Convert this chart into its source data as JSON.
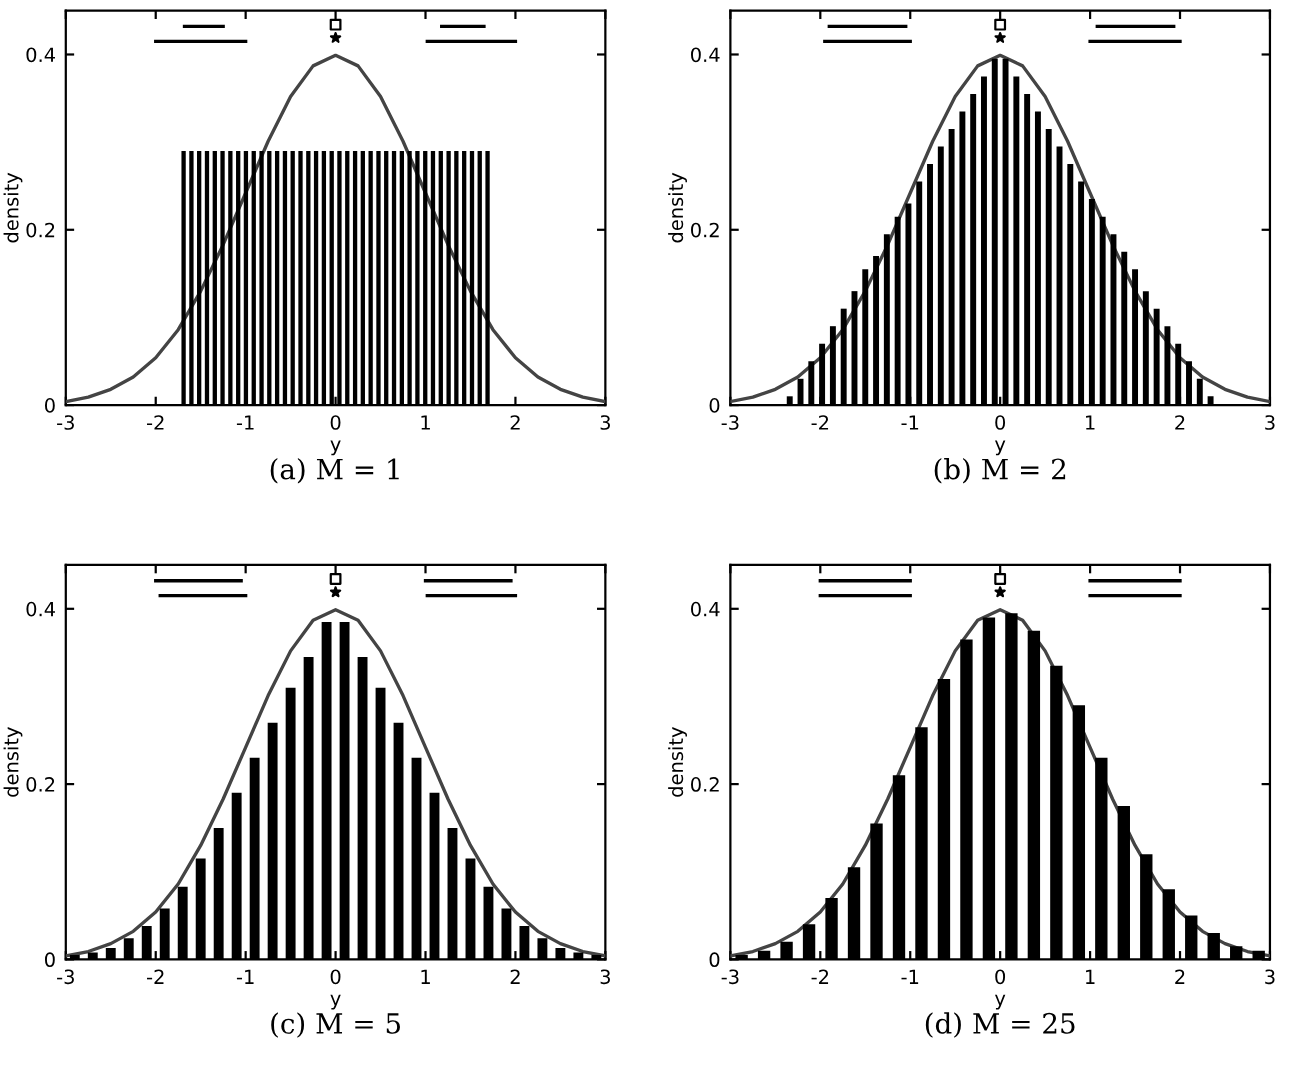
{
  "chart_data": [
    {
      "type": "bar",
      "title": "(a) M = 1",
      "xlabel": "y",
      "ylabel": "density",
      "xlim": [
        -3,
        3
      ],
      "ylim": [
        0,
        0.45
      ],
      "xticks": [
        -3,
        -2,
        -1,
        0,
        1,
        2,
        3
      ],
      "yticks": [
        0,
        0.2,
        0.4
      ],
      "series": [
        {
          "color": "#000000",
          "x": [
            -1.69,
            -1.603,
            -1.517,
            -1.43,
            -1.343,
            -1.257,
            -1.17,
            -1.083,
            -0.997,
            -0.91,
            -0.823,
            -0.737,
            -0.65,
            -0.563,
            -0.477,
            -0.39,
            -0.303,
            -0.217,
            -0.13,
            -0.043,
            0.043,
            0.13,
            0.217,
            0.303,
            0.39,
            0.477,
            0.563,
            0.65,
            0.737,
            0.823,
            0.91,
            0.997,
            1.083,
            1.17,
            1.257,
            1.343,
            1.43,
            1.517,
            1.603,
            1.69
          ],
          "values": [
            0.29,
            0.29,
            0.29,
            0.29,
            0.29,
            0.29,
            0.29,
            0.29,
            0.29,
            0.29,
            0.29,
            0.29,
            0.29,
            0.29,
            0.29,
            0.29,
            0.29,
            0.29,
            0.29,
            0.29,
            0.29,
            0.29,
            0.29,
            0.29,
            0.29,
            0.29,
            0.29,
            0.29,
            0.29,
            0.29,
            0.29,
            0.29,
            0.29,
            0.29,
            0.29,
            0.29,
            0.29,
            0.29,
            0.29,
            0.29
          ]
        },
        {
          "type": "line",
          "color": "#444444",
          "x": [
            -3,
            -2.75,
            -2.5,
            -2.25,
            -2,
            -1.75,
            -1.5,
            -1.25,
            -1,
            -0.75,
            -0.5,
            -0.25,
            0,
            0.25,
            0.5,
            0.75,
            1,
            1.25,
            1.5,
            1.75,
            2,
            2.25,
            2.5,
            2.75,
            3
          ],
          "values": [
            0.004,
            0.009,
            0.018,
            0.032,
            0.054,
            0.086,
            0.13,
            0.183,
            0.242,
            0.301,
            0.352,
            0.387,
            0.399,
            0.387,
            0.352,
            0.301,
            0.242,
            0.183,
            0.13,
            0.086,
            0.054,
            0.032,
            0.018,
            0.009,
            0.004
          ]
        },
        {
          "type": "line",
          "color": "#000000",
          "x": [
            -1.68,
            -1.25
          ],
          "values": [
            0.432,
            0.432
          ]
        },
        {
          "type": "line",
          "color": "#000000",
          "x": [
            -2.0,
            -1.0
          ],
          "values": [
            0.415,
            0.415
          ]
        },
        {
          "type": "line",
          "color": "#000000",
          "x": [
            1.18,
            1.65
          ],
          "values": [
            0.432,
            0.432
          ]
        },
        {
          "type": "line",
          "color": "#000000",
          "x": [
            1.02,
            2.0
          ],
          "values": [
            0.415,
            0.415
          ]
        },
        {
          "type": "scatter",
          "marker": "square",
          "color": "#000000",
          "x": [
            0
          ],
          "values": [
            0.434
          ]
        },
        {
          "type": "scatter",
          "marker": "star",
          "color": "#000000",
          "x": [
            0
          ],
          "values": [
            0.419
          ]
        }
      ]
    },
    {
      "type": "bar",
      "title": "(b) M = 2",
      "xlabel": "y",
      "ylabel": "density",
      "xlim": [
        -3,
        3
      ],
      "ylim": [
        0,
        0.45
      ],
      "xticks": [
        -3,
        -2,
        -1,
        0,
        1,
        2,
        3
      ],
      "yticks": [
        0,
        0.2,
        0.4
      ],
      "series": [
        {
          "color": "#000000",
          "x": [
            -2.34,
            -2.22,
            -2.1,
            -1.98,
            -1.86,
            -1.74,
            -1.62,
            -1.5,
            -1.38,
            -1.26,
            -1.14,
            -1.02,
            -0.9,
            -0.78,
            -0.66,
            -0.54,
            -0.42,
            -0.3,
            -0.18,
            -0.06,
            0.06,
            0.18,
            0.3,
            0.42,
            0.54,
            0.66,
            0.78,
            0.9,
            1.02,
            1.14,
            1.26,
            1.38,
            1.5,
            1.62,
            1.74,
            1.86,
            1.98,
            2.1,
            2.22,
            2.34
          ],
          "values": [
            0.01,
            0.03,
            0.05,
            0.07,
            0.09,
            0.11,
            0.13,
            0.155,
            0.17,
            0.195,
            0.215,
            0.23,
            0.255,
            0.275,
            0.295,
            0.315,
            0.335,
            0.355,
            0.375,
            0.395,
            0.395,
            0.375,
            0.355,
            0.335,
            0.315,
            0.295,
            0.275,
            0.255,
            0.235,
            0.215,
            0.195,
            0.175,
            0.155,
            0.13,
            0.11,
            0.09,
            0.07,
            0.05,
            0.03,
            0.01
          ]
        },
        {
          "type": "line",
          "color": "#444444",
          "x": [
            -3,
            -2.75,
            -2.5,
            -2.25,
            -2,
            -1.75,
            -1.5,
            -1.25,
            -1,
            -0.75,
            -0.5,
            -0.25,
            0,
            0.25,
            0.5,
            0.75,
            1,
            1.25,
            1.5,
            1.75,
            2,
            2.25,
            2.5,
            2.75,
            3
          ],
          "values": [
            0.004,
            0.009,
            0.018,
            0.032,
            0.054,
            0.086,
            0.13,
            0.183,
            0.242,
            0.301,
            0.352,
            0.387,
            0.399,
            0.387,
            0.352,
            0.301,
            0.242,
            0.183,
            0.13,
            0.086,
            0.054,
            0.032,
            0.018,
            0.009,
            0.004
          ]
        },
        {
          "type": "line",
          "color": "#000000",
          "x": [
            -1.9,
            -1.05
          ],
          "values": [
            0.432,
            0.432
          ]
        },
        {
          "type": "line",
          "color": "#000000",
          "x": [
            -1.95,
            -1.0
          ],
          "values": [
            0.415,
            0.415
          ]
        },
        {
          "type": "line",
          "color": "#000000",
          "x": [
            1.08,
            1.93
          ],
          "values": [
            0.432,
            0.432
          ]
        },
        {
          "type": "line",
          "color": "#000000",
          "x": [
            1.0,
            2.0
          ],
          "values": [
            0.415,
            0.415
          ]
        },
        {
          "type": "scatter",
          "marker": "square",
          "color": "#000000",
          "x": [
            0
          ],
          "values": [
            0.434
          ]
        },
        {
          "type": "scatter",
          "marker": "star",
          "color": "#000000",
          "x": [
            0
          ],
          "values": [
            0.419
          ]
        }
      ]
    },
    {
      "type": "bar",
      "title": "(c) M = 5",
      "xlabel": "y",
      "ylabel": "density",
      "xlim": [
        -3,
        3
      ],
      "ylim": [
        0,
        0.45
      ],
      "xticks": [
        -3,
        -2,
        -1,
        0,
        1,
        2,
        3
      ],
      "yticks": [
        0,
        0.2,
        0.4
      ],
      "series": [
        {
          "color": "#000000",
          "x": [
            -2.9,
            -2.7,
            -2.5,
            -2.3,
            -2.1,
            -1.9,
            -1.7,
            -1.5,
            -1.3,
            -1.1,
            -0.9,
            -0.7,
            -0.5,
            -0.3,
            -0.1,
            0.1,
            0.3,
            0.5,
            0.7,
            0.9,
            1.1,
            1.3,
            1.5,
            1.7,
            1.9,
            2.1,
            2.3,
            2.5,
            2.7,
            2.9
          ],
          "values": [
            0.005,
            0.008,
            0.013,
            0.024,
            0.038,
            0.058,
            0.083,
            0.115,
            0.15,
            0.19,
            0.23,
            0.27,
            0.31,
            0.345,
            0.385,
            0.385,
            0.345,
            0.31,
            0.27,
            0.23,
            0.19,
            0.15,
            0.115,
            0.083,
            0.058,
            0.038,
            0.024,
            0.013,
            0.008,
            0.005
          ]
        },
        {
          "type": "line",
          "color": "#444444",
          "x": [
            -3,
            -2.75,
            -2.5,
            -2.25,
            -2,
            -1.75,
            -1.5,
            -1.25,
            -1,
            -0.75,
            -0.5,
            -0.25,
            0,
            0.25,
            0.5,
            0.75,
            1,
            1.25,
            1.5,
            1.75,
            2,
            2.25,
            2.5,
            2.75,
            3
          ],
          "values": [
            0.004,
            0.009,
            0.018,
            0.032,
            0.054,
            0.086,
            0.13,
            0.183,
            0.242,
            0.301,
            0.352,
            0.387,
            0.399,
            0.387,
            0.352,
            0.301,
            0.242,
            0.183,
            0.13,
            0.086,
            0.054,
            0.032,
            0.018,
            0.009,
            0.004
          ]
        },
        {
          "type": "line",
          "color": "#000000",
          "x": [
            -2.0,
            -1.05
          ],
          "values": [
            0.432,
            0.432
          ]
        },
        {
          "type": "line",
          "color": "#000000",
          "x": [
            -1.95,
            -1.0
          ],
          "values": [
            0.415,
            0.415
          ]
        },
        {
          "type": "line",
          "color": "#000000",
          "x": [
            1.0,
            1.95
          ],
          "values": [
            0.432,
            0.432
          ]
        },
        {
          "type": "line",
          "color": "#000000",
          "x": [
            1.02,
            2.0
          ],
          "values": [
            0.415,
            0.415
          ]
        },
        {
          "type": "scatter",
          "marker": "square",
          "color": "#000000",
          "x": [
            0
          ],
          "values": [
            0.434
          ]
        },
        {
          "type": "scatter",
          "marker": "star",
          "color": "#000000",
          "x": [
            0
          ],
          "values": [
            0.419
          ]
        }
      ]
    },
    {
      "type": "bar",
      "title": "(d) M = 25",
      "xlabel": "y",
      "ylabel": "density",
      "xlim": [
        -3,
        3
      ],
      "ylim": [
        0,
        0.45
      ],
      "xticks": [
        -3,
        -2,
        -1,
        0,
        1,
        2,
        3
      ],
      "yticks": [
        0,
        0.2,
        0.4
      ],
      "series": [
        {
          "color": "#000000",
          "x": [
            -2.875,
            -2.625,
            -2.375,
            -2.125,
            -1.875,
            -1.625,
            -1.375,
            -1.125,
            -0.875,
            -0.625,
            -0.375,
            -0.125,
            0.125,
            0.375,
            0.625,
            0.875,
            1.125,
            1.375,
            1.625,
            1.875,
            2.125,
            2.375,
            2.625,
            2.875
          ],
          "values": [
            0.005,
            0.01,
            0.02,
            0.04,
            0.07,
            0.105,
            0.155,
            0.21,
            0.265,
            0.32,
            0.365,
            0.39,
            0.395,
            0.375,
            0.335,
            0.29,
            0.23,
            0.175,
            0.12,
            0.08,
            0.05,
            0.03,
            0.015,
            0.01
          ]
        },
        {
          "type": "line",
          "color": "#444444",
          "x": [
            -3,
            -2.75,
            -2.5,
            -2.25,
            -2,
            -1.75,
            -1.5,
            -1.25,
            -1,
            -0.75,
            -0.5,
            -0.25,
            0,
            0.25,
            0.5,
            0.75,
            1,
            1.25,
            1.5,
            1.75,
            2,
            2.25,
            2.5,
            2.75,
            3
          ],
          "values": [
            0.004,
            0.009,
            0.018,
            0.032,
            0.054,
            0.086,
            0.13,
            0.183,
            0.242,
            0.301,
            0.352,
            0.387,
            0.399,
            0.387,
            0.352,
            0.301,
            0.242,
            0.183,
            0.13,
            0.086,
            0.054,
            0.032,
            0.018,
            0.009,
            0.004
          ]
        },
        {
          "type": "line",
          "color": "#000000",
          "x": [
            -2.0,
            -1.0
          ],
          "values": [
            0.432,
            0.432
          ]
        },
        {
          "type": "line",
          "color": "#000000",
          "x": [
            -2.0,
            -1.0
          ],
          "values": [
            0.415,
            0.415
          ]
        },
        {
          "type": "line",
          "color": "#000000",
          "x": [
            1.0,
            2.0
          ],
          "values": [
            0.432,
            0.432
          ]
        },
        {
          "type": "line",
          "color": "#000000",
          "x": [
            1.0,
            2.0
          ],
          "values": [
            0.415,
            0.415
          ]
        },
        {
          "type": "scatter",
          "marker": "square",
          "color": "#000000",
          "x": [
            0
          ],
          "values": [
            0.434
          ]
        },
        {
          "type": "scatter",
          "marker": "star",
          "color": "#000000",
          "x": [
            0
          ],
          "values": [
            0.419
          ]
        }
      ]
    }
  ]
}
